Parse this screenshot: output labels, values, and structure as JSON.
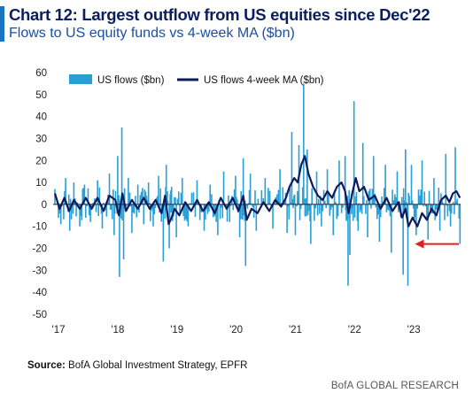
{
  "header": {
    "title": "Chart 12: Largest outflow from US equities since Dec'22",
    "subtitle": "Flows to US equity funds vs 4-week MA ($bn)"
  },
  "footer": {
    "source_label": "Source:",
    "source_text": " BofA Global Investment Strategy, EPFR",
    "brand": "BofA GLOBAL RESEARCH"
  },
  "colors": {
    "bars": "#2a9fd6",
    "ma_line": "#0d1b5e",
    "zero_line": "#222222",
    "arrow": "#e02020",
    "accent": "#1b73c4"
  },
  "chart_data": {
    "type": "bar",
    "x_axis": {
      "tick_labels": [
        "'17",
        "'18",
        "'19",
        "'20",
        "'21",
        "'22",
        "'23"
      ],
      "start": 2017.0,
      "end": 2023.85
    },
    "y_axis": {
      "ylim": [
        -50,
        60
      ],
      "ticks": [
        60,
        50,
        40,
        30,
        20,
        10,
        0,
        -10,
        -20,
        -30,
        -40,
        -50
      ]
    },
    "legend": {
      "position": "top-left",
      "entries": [
        "US flows ($bn)",
        "US flows 4-week MA ($bn)"
      ]
    },
    "series": [
      {
        "name": "US flows ($bn)",
        "kind": "bar",
        "frequency": "weekly",
        "points": [
          {
            "x": 2017.0,
            "y": 7
          },
          {
            "x": 2017.1,
            "y": -9
          },
          {
            "x": 2017.18,
            "y": 12
          },
          {
            "x": 2017.25,
            "y": -12
          },
          {
            "x": 2017.32,
            "y": 10
          },
          {
            "x": 2017.42,
            "y": -10
          },
          {
            "x": 2017.5,
            "y": 9
          },
          {
            "x": 2017.6,
            "y": -8
          },
          {
            "x": 2017.72,
            "y": 11
          },
          {
            "x": 2017.8,
            "y": -11
          },
          {
            "x": 2017.92,
            "y": 14
          },
          {
            "x": 2018.0,
            "y": -14
          },
          {
            "x": 2018.06,
            "y": 22
          },
          {
            "x": 2018.09,
            "y": -33
          },
          {
            "x": 2018.13,
            "y": 35
          },
          {
            "x": 2018.16,
            "y": -25
          },
          {
            "x": 2018.24,
            "y": 12
          },
          {
            "x": 2018.3,
            "y": -13
          },
          {
            "x": 2018.4,
            "y": 9
          },
          {
            "x": 2018.5,
            "y": -9
          },
          {
            "x": 2018.58,
            "y": 10
          },
          {
            "x": 2018.66,
            "y": -10
          },
          {
            "x": 2018.75,
            "y": 13
          },
          {
            "x": 2018.83,
            "y": -26
          },
          {
            "x": 2018.88,
            "y": 18
          },
          {
            "x": 2018.93,
            "y": -20
          },
          {
            "x": 2018.97,
            "y": 8
          },
          {
            "x": 2019.05,
            "y": -15
          },
          {
            "x": 2019.15,
            "y": 12
          },
          {
            "x": 2019.25,
            "y": -10
          },
          {
            "x": 2019.4,
            "y": 11
          },
          {
            "x": 2019.52,
            "y": -12
          },
          {
            "x": 2019.62,
            "y": 9
          },
          {
            "x": 2019.75,
            "y": -14
          },
          {
            "x": 2019.85,
            "y": 15
          },
          {
            "x": 2019.95,
            "y": -8
          },
          {
            "x": 2020.05,
            "y": 13
          },
          {
            "x": 2020.12,
            "y": -15
          },
          {
            "x": 2020.18,
            "y": 21
          },
          {
            "x": 2020.22,
            "y": -28
          },
          {
            "x": 2020.3,
            "y": 14
          },
          {
            "x": 2020.4,
            "y": -12
          },
          {
            "x": 2020.55,
            "y": 12
          },
          {
            "x": 2020.68,
            "y": -11
          },
          {
            "x": 2020.8,
            "y": 16
          },
          {
            "x": 2020.92,
            "y": -13
          },
          {
            "x": 2021.0,
            "y": 33
          },
          {
            "x": 2021.06,
            "y": -14
          },
          {
            "x": 2021.12,
            "y": 27
          },
          {
            "x": 2021.2,
            "y": 55
          },
          {
            "x": 2021.26,
            "y": 25
          },
          {
            "x": 2021.32,
            "y": -18
          },
          {
            "x": 2021.42,
            "y": 15
          },
          {
            "x": 2021.5,
            "y": -10
          },
          {
            "x": 2021.6,
            "y": 16
          },
          {
            "x": 2021.7,
            "y": -14
          },
          {
            "x": 2021.8,
            "y": 20
          },
          {
            "x": 2021.9,
            "y": 22
          },
          {
            "x": 2021.95,
            "y": -37
          },
          {
            "x": 2021.98,
            "y": -23
          },
          {
            "x": 2022.05,
            "y": 47
          },
          {
            "x": 2022.12,
            "y": -12
          },
          {
            "x": 2022.2,
            "y": 28
          },
          {
            "x": 2022.28,
            "y": -15
          },
          {
            "x": 2022.38,
            "y": 22
          },
          {
            "x": 2022.48,
            "y": -17
          },
          {
            "x": 2022.58,
            "y": 18
          },
          {
            "x": 2022.68,
            "y": -22
          },
          {
            "x": 2022.78,
            "y": 15
          },
          {
            "x": 2022.88,
            "y": -32
          },
          {
            "x": 2022.92,
            "y": 25
          },
          {
            "x": 2022.96,
            "y": -37
          },
          {
            "x": 2023.02,
            "y": 18
          },
          {
            "x": 2023.1,
            "y": -14
          },
          {
            "x": 2023.2,
            "y": 20
          },
          {
            "x": 2023.3,
            "y": -16
          },
          {
            "x": 2023.4,
            "y": 12
          },
          {
            "x": 2023.5,
            "y": -12
          },
          {
            "x": 2023.6,
            "y": 23
          },
          {
            "x": 2023.68,
            "y": -10
          },
          {
            "x": 2023.76,
            "y": 26
          },
          {
            "x": 2023.84,
            "y": -18
          }
        ]
      },
      {
        "name": "US flows 4-week MA ($bn)",
        "kind": "line",
        "points": [
          {
            "x": 2017.0,
            "y": 5
          },
          {
            "x": 2017.08,
            "y": -2
          },
          {
            "x": 2017.16,
            "y": 3
          },
          {
            "x": 2017.24,
            "y": -3
          },
          {
            "x": 2017.32,
            "y": 2
          },
          {
            "x": 2017.42,
            "y": -2
          },
          {
            "x": 2017.52,
            "y": 3
          },
          {
            "x": 2017.62,
            "y": -2
          },
          {
            "x": 2017.72,
            "y": 3
          },
          {
            "x": 2017.82,
            "y": -3
          },
          {
            "x": 2017.92,
            "y": 4
          },
          {
            "x": 2018.02,
            "y": 2
          },
          {
            "x": 2018.08,
            "y": -5
          },
          {
            "x": 2018.14,
            "y": 5
          },
          {
            "x": 2018.2,
            "y": -3
          },
          {
            "x": 2018.3,
            "y": 2
          },
          {
            "x": 2018.4,
            "y": -2
          },
          {
            "x": 2018.5,
            "y": 3
          },
          {
            "x": 2018.6,
            "y": -2
          },
          {
            "x": 2018.7,
            "y": 2
          },
          {
            "x": 2018.8,
            "y": -4
          },
          {
            "x": 2018.86,
            "y": 4
          },
          {
            "x": 2018.92,
            "y": -9
          },
          {
            "x": 2018.97,
            "y": -6
          },
          {
            "x": 2019.02,
            "y": -2
          },
          {
            "x": 2019.1,
            "y": -5
          },
          {
            "x": 2019.2,
            "y": 1
          },
          {
            "x": 2019.3,
            "y": -3
          },
          {
            "x": 2019.4,
            "y": 2
          },
          {
            "x": 2019.5,
            "y": -3
          },
          {
            "x": 2019.6,
            "y": 1
          },
          {
            "x": 2019.7,
            "y": -4
          },
          {
            "x": 2019.8,
            "y": 3
          },
          {
            "x": 2019.9,
            "y": -2
          },
          {
            "x": 2020.0,
            "y": 3
          },
          {
            "x": 2020.1,
            "y": -3
          },
          {
            "x": 2020.18,
            "y": 4
          },
          {
            "x": 2020.24,
            "y": -7
          },
          {
            "x": 2020.32,
            "y": -2
          },
          {
            "x": 2020.42,
            "y": -4
          },
          {
            "x": 2020.52,
            "y": 1
          },
          {
            "x": 2020.62,
            "y": -3
          },
          {
            "x": 2020.72,
            "y": 2
          },
          {
            "x": 2020.82,
            "y": -1
          },
          {
            "x": 2020.9,
            "y": 3
          },
          {
            "x": 2020.96,
            "y": 8
          },
          {
            "x": 2021.04,
            "y": 12
          },
          {
            "x": 2021.1,
            "y": 10
          },
          {
            "x": 2021.16,
            "y": 18
          },
          {
            "x": 2021.22,
            "y": 22
          },
          {
            "x": 2021.28,
            "y": 14
          },
          {
            "x": 2021.36,
            "y": 8
          },
          {
            "x": 2021.44,
            "y": 4
          },
          {
            "x": 2021.52,
            "y": 2
          },
          {
            "x": 2021.6,
            "y": 6
          },
          {
            "x": 2021.68,
            "y": 3
          },
          {
            "x": 2021.76,
            "y": 8
          },
          {
            "x": 2021.84,
            "y": 10
          },
          {
            "x": 2021.9,
            "y": 6
          },
          {
            "x": 2021.96,
            "y": -4
          },
          {
            "x": 2022.02,
            "y": 5
          },
          {
            "x": 2022.08,
            "y": 12
          },
          {
            "x": 2022.14,
            "y": 6
          },
          {
            "x": 2022.22,
            "y": 8
          },
          {
            "x": 2022.3,
            "y": 2
          },
          {
            "x": 2022.4,
            "y": 4
          },
          {
            "x": 2022.5,
            "y": -2
          },
          {
            "x": 2022.6,
            "y": 3
          },
          {
            "x": 2022.7,
            "y": -3
          },
          {
            "x": 2022.8,
            "y": 1
          },
          {
            "x": 2022.86,
            "y": -6
          },
          {
            "x": 2022.92,
            "y": -2
          },
          {
            "x": 2022.97,
            "y": -10
          },
          {
            "x": 2023.04,
            "y": -6
          },
          {
            "x": 2023.12,
            "y": -10
          },
          {
            "x": 2023.2,
            "y": -4
          },
          {
            "x": 2023.28,
            "y": -7
          },
          {
            "x": 2023.36,
            "y": -2
          },
          {
            "x": 2023.44,
            "y": -5
          },
          {
            "x": 2023.52,
            "y": 2
          },
          {
            "x": 2023.6,
            "y": 4
          },
          {
            "x": 2023.66,
            "y": 1
          },
          {
            "x": 2023.72,
            "y": 5
          },
          {
            "x": 2023.78,
            "y": 6
          },
          {
            "x": 2023.84,
            "y": 3
          }
        ]
      }
    ],
    "annotations": [
      {
        "type": "arrow",
        "color": "#e02020",
        "direction": "left",
        "x_from": 2023.82,
        "x_to": 2023.08,
        "y": -18
      }
    ]
  }
}
